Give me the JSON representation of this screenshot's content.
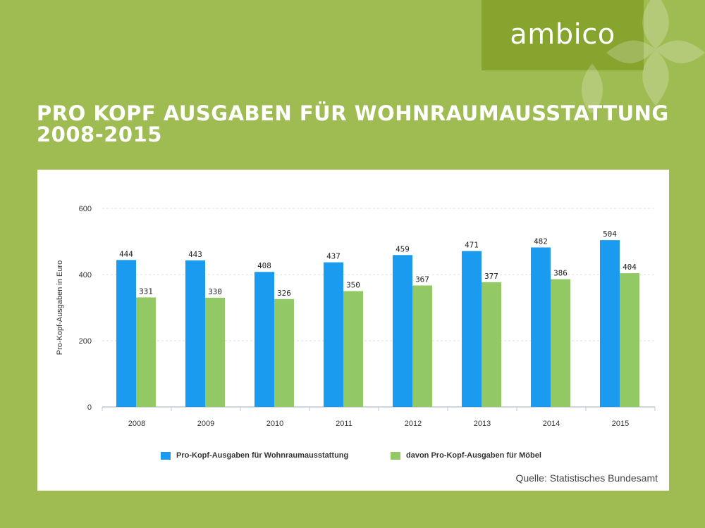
{
  "brand": {
    "logo_text": "ambico",
    "bg_color": "#9fbc52",
    "logo_bg": "#86a42e"
  },
  "title": {
    "line1": "Pro Kopf Ausgaben für Wohnraumausstattung",
    "line2": "2008-2015"
  },
  "source": "Quelle: Statistisches Bundesamt",
  "chart_data": {
    "type": "bar",
    "title": "",
    "xlabel": "",
    "ylabel": "Pro-Kopf-Ausgaben in Euro",
    "ylim": [
      0,
      600
    ],
    "yticks": [
      0,
      200,
      400,
      600
    ],
    "categories": [
      "2008",
      "2009",
      "2010",
      "2011",
      "2012",
      "2013",
      "2014",
      "2015"
    ],
    "series": [
      {
        "name": "Pro-Kopf-Ausgaben für Wohnraumausstattung",
        "color": "#1a9bf0",
        "values": [
          444,
          443,
          408,
          437,
          459,
          471,
          482,
          504
        ]
      },
      {
        "name": "davon Pro-Kopf-Ausgaben für Möbel",
        "color": "#93c965",
        "values": [
          331,
          330,
          326,
          350,
          367,
          377,
          386,
          404
        ]
      }
    ],
    "legend": "bottom",
    "grid": true
  }
}
